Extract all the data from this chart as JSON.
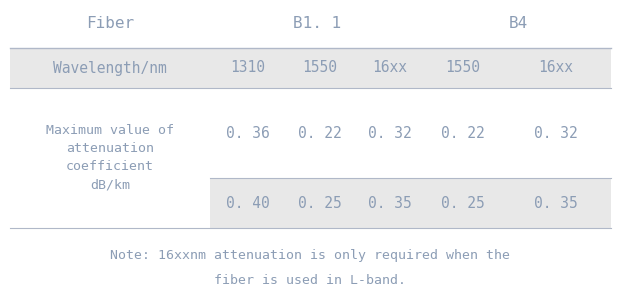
{
  "title_row": [
    "Fiber",
    "B1. 1",
    "B4"
  ],
  "header_row": [
    "Wavelength/nm",
    "1310",
    "1550",
    "16xx",
    "1550",
    "16xx"
  ],
  "data_row1_label": "Maximum value of\nattenuation\ncoefficient\ndB/km",
  "data_row1_vals": [
    "0. 36",
    "0. 22",
    "0. 32",
    "0. 22",
    "0. 32"
  ],
  "data_row2_vals": [
    "0. 40",
    "0. 25",
    "0. 35",
    "0. 25",
    "0. 35"
  ],
  "note_line1": "Note: 16xxnm attenuation is only required when the",
  "note_line2": "fiber is used in L-band.",
  "bg_color": "#ffffff",
  "shaded_color": "#e8e8e8",
  "text_color": "#8c9db5",
  "line_color": "#b0b8c8",
  "font_size": 10.5,
  "note_font_size": 9.5
}
